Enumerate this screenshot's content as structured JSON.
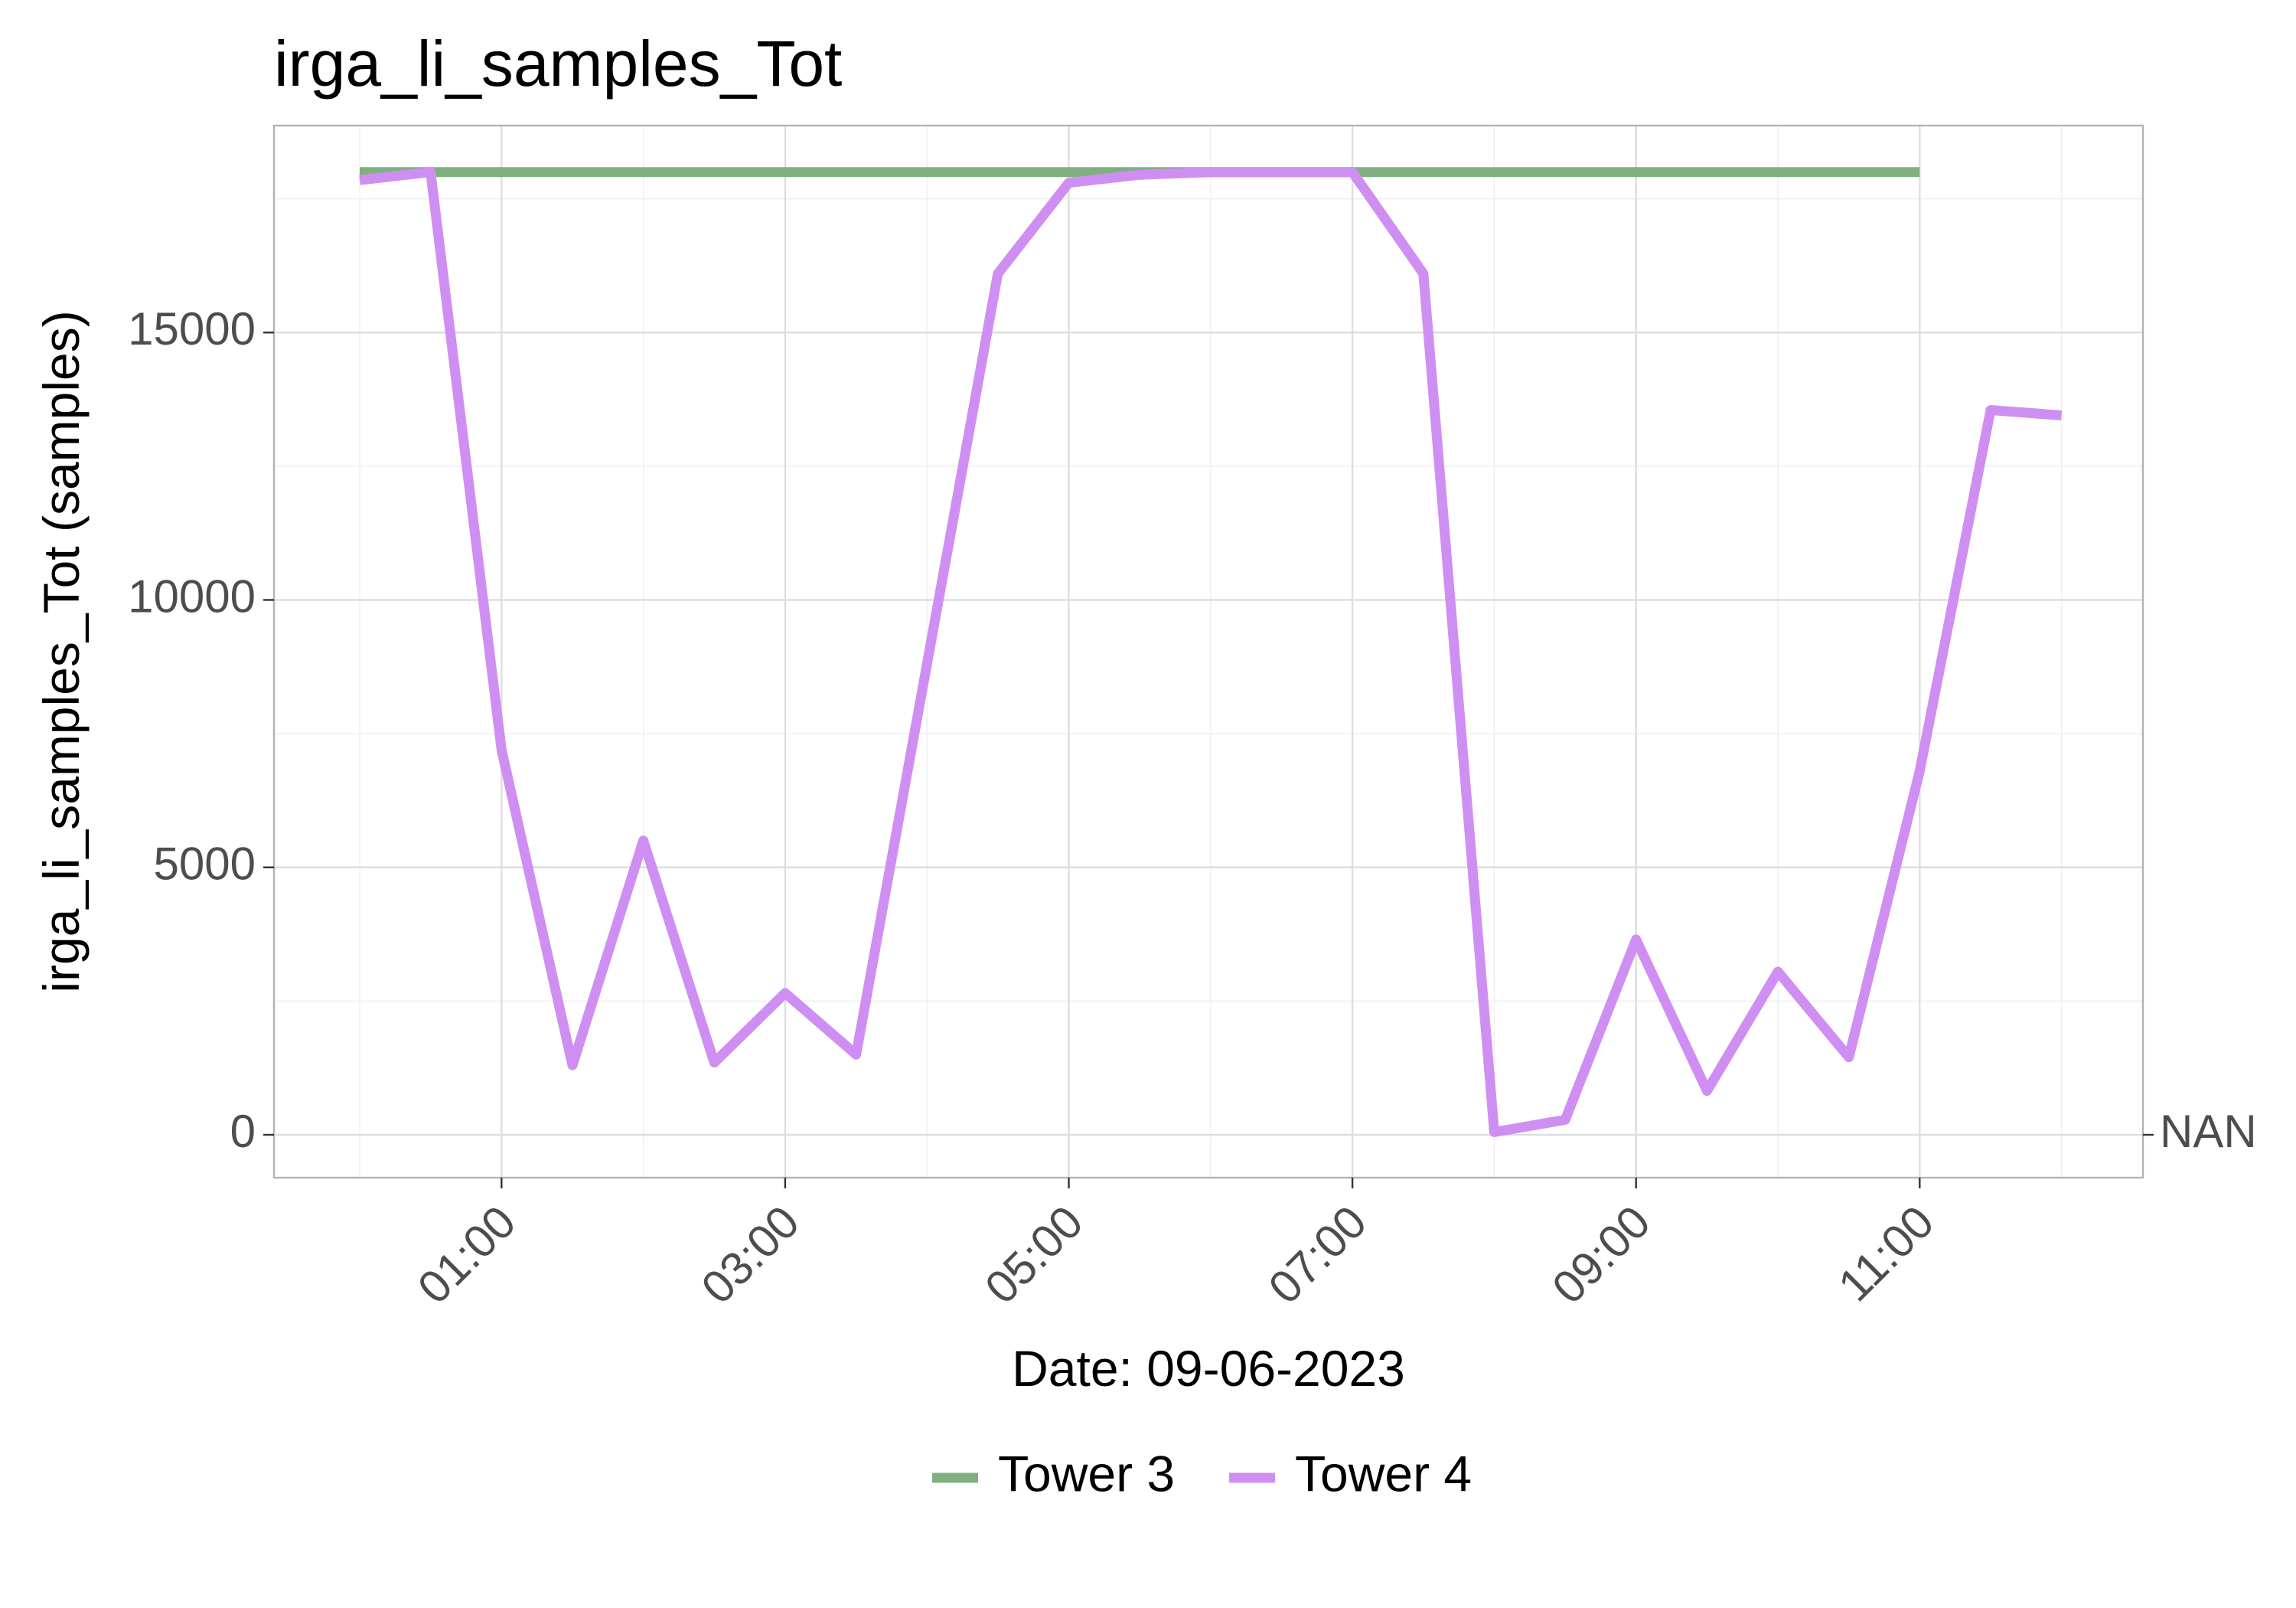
{
  "chart_data": {
    "type": "line",
    "title": "irga_li_samples_Tot",
    "xlabel": "Date: 09-06-2023",
    "ylabel": "irga_li_samples_Tot (samples)",
    "x_ticks": [
      "01:00",
      "03:00",
      "05:00",
      "07:00",
      "09:00",
      "11:00"
    ],
    "y_ticks": [
      0,
      5000,
      10000,
      15000
    ],
    "y_tick_labels": [
      "0",
      "5000",
      "10000",
      "15000"
    ],
    "extra_y_label": "NAN",
    "xlim": [
      "00:00",
      "12:00"
    ],
    "ylim": [
      0,
      18000
    ],
    "grid": true,
    "legend_position": "bottom",
    "series": [
      {
        "name": "Tower 3",
        "color": "#80b080",
        "x": [
          "00:00",
          "11:00"
        ],
        "y": [
          18000,
          18000
        ]
      },
      {
        "name": "Tower 4",
        "color": "#cf8ff2",
        "x": [
          "00:00",
          "00:30",
          "01:00",
          "01:30",
          "02:00",
          "02:30",
          "03:00",
          "03:30",
          "04:00",
          "04:30",
          "05:00",
          "05:30",
          "06:00",
          "06:30",
          "07:00",
          "07:30",
          "08:00",
          "08:30",
          "09:00",
          "09:30",
          "10:00",
          "10:30",
          "11:00",
          "11:30",
          "12:00"
        ],
        "y": [
          17850,
          18000,
          7200,
          1300,
          5500,
          1350,
          2650,
          1500,
          8800,
          16100,
          17800,
          17950,
          18000,
          18000,
          18000,
          16100,
          50,
          280,
          3650,
          820,
          3050,
          1450,
          6800,
          13550,
          13450
        ]
      }
    ]
  }
}
